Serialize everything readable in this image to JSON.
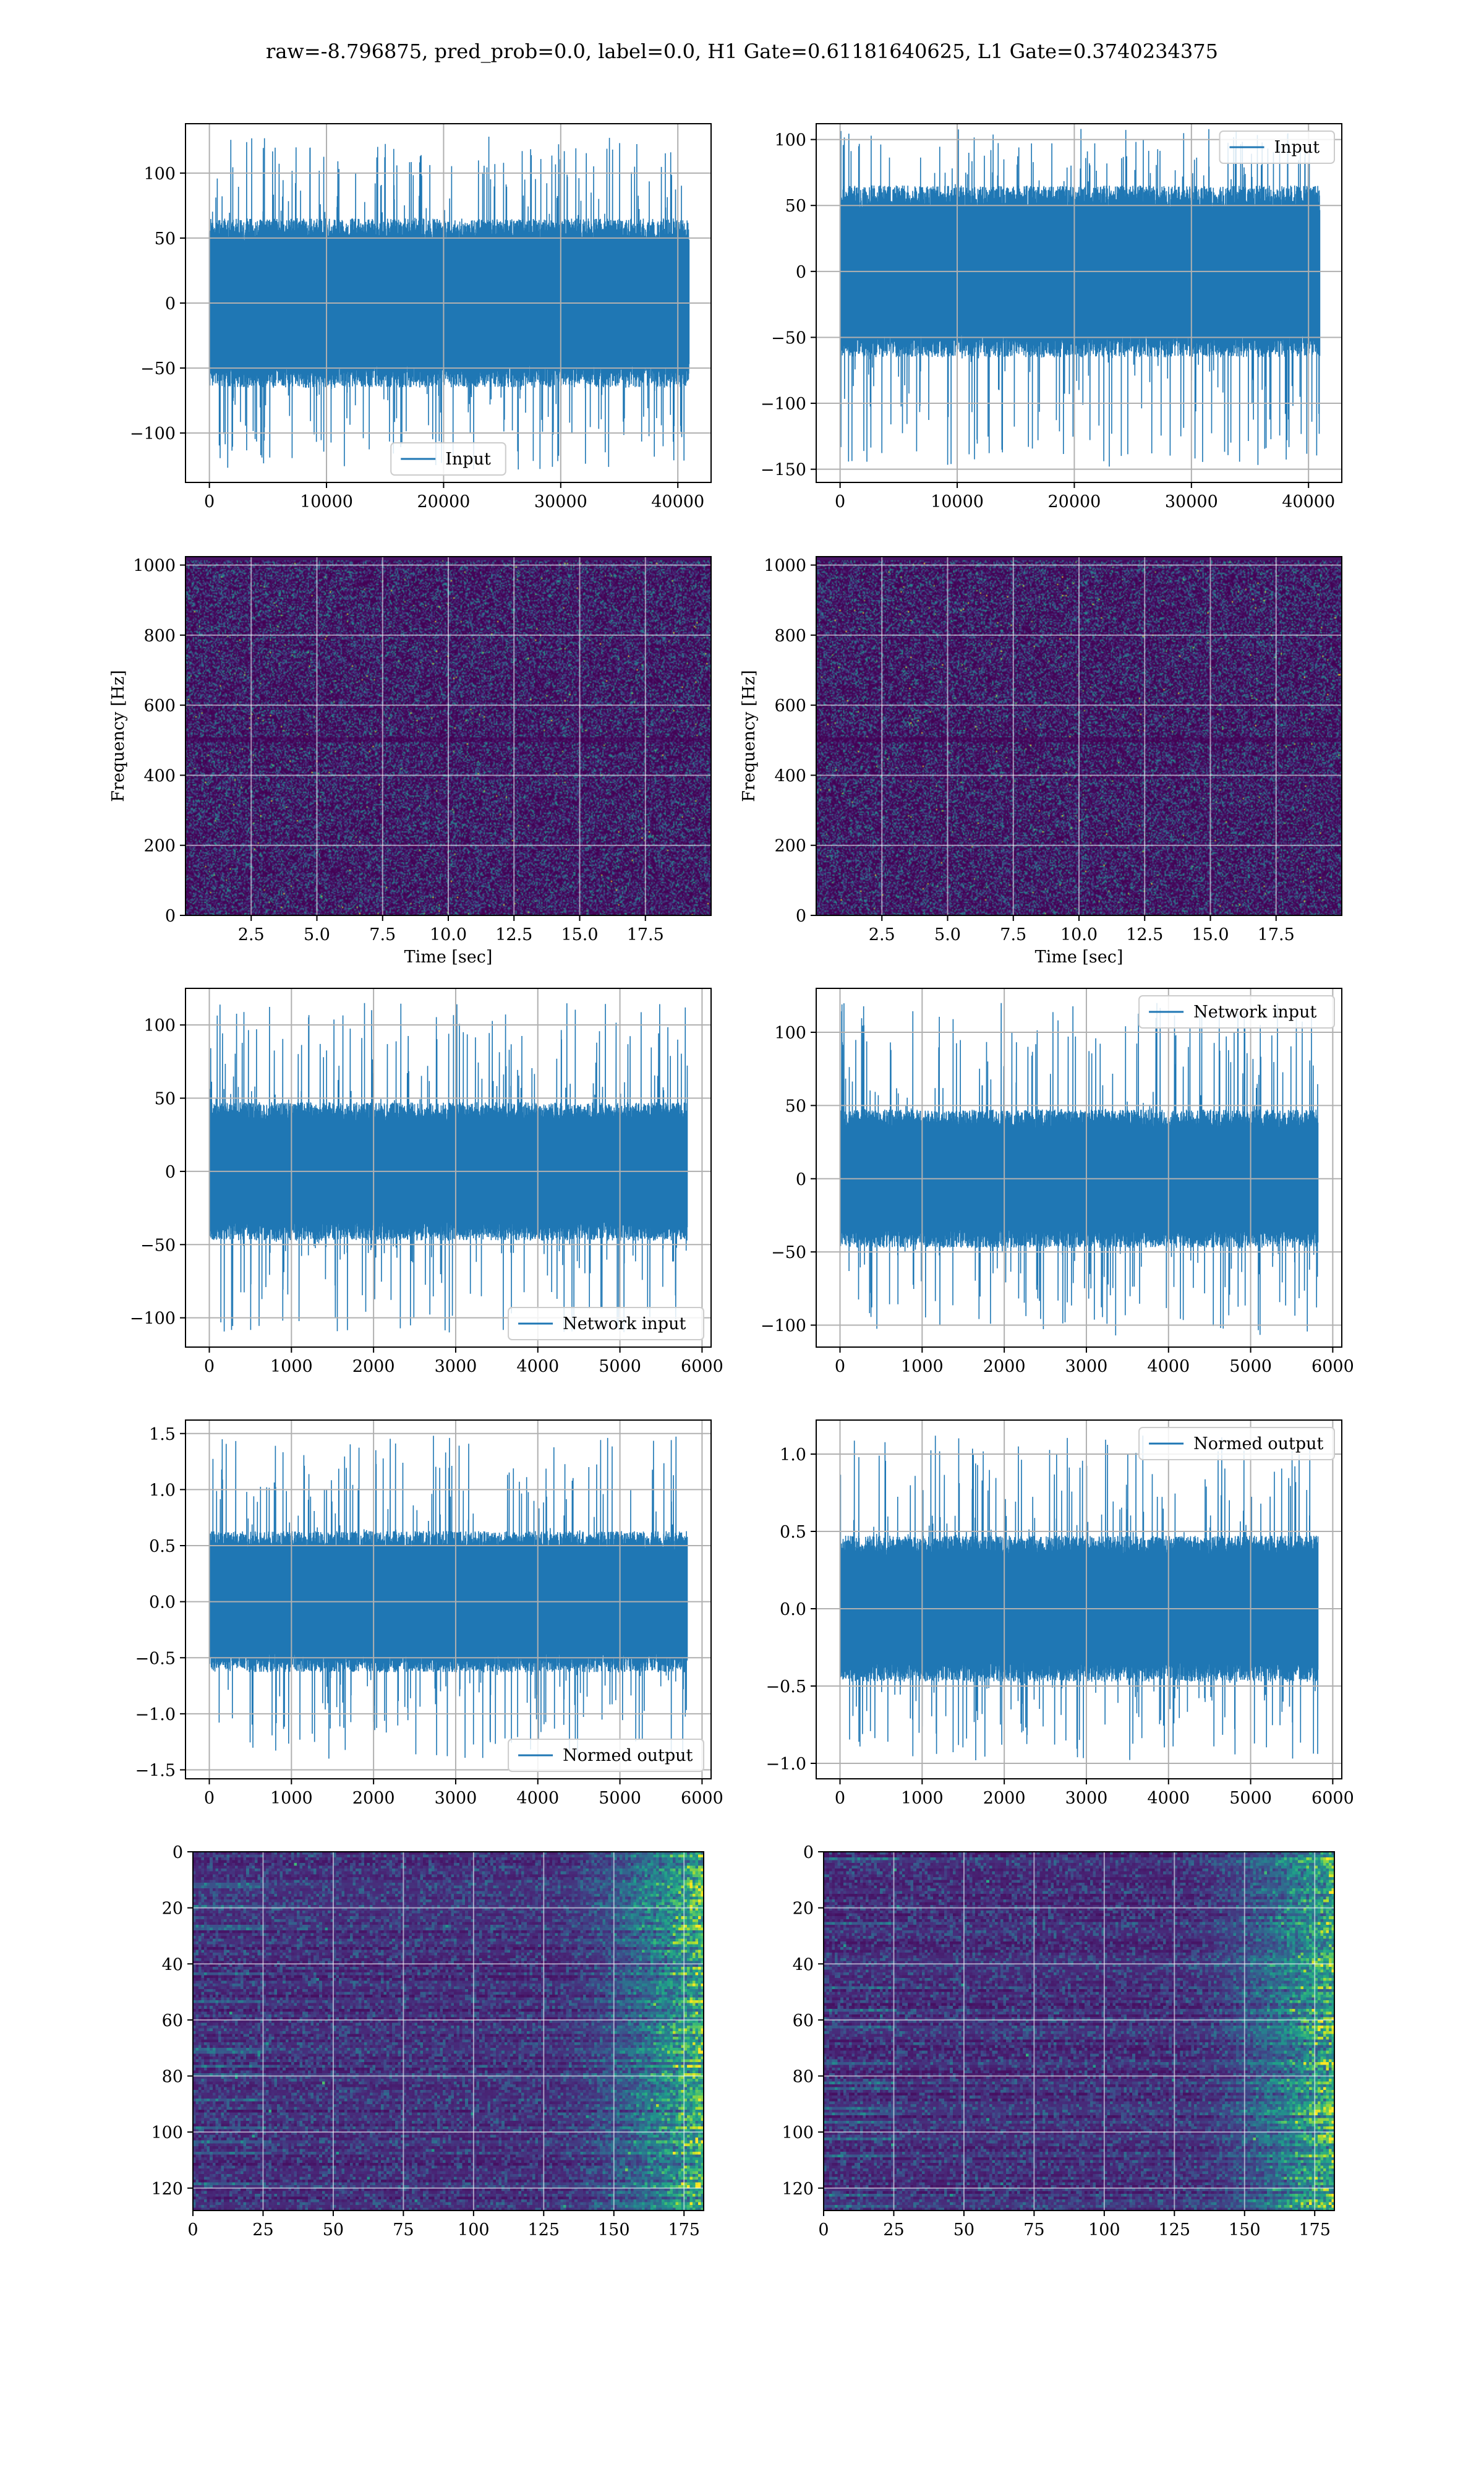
{
  "figure": {
    "title": "raw=-8.796875, pred_prob=0.0, label=0.0, H1 Gate=0.61181640625, L1 Gate=0.3740234375",
    "series_color": "#1f77b4"
  },
  "chart_data": [
    {
      "id": "h1-input",
      "type": "line",
      "title": "",
      "xlabel": "",
      "ylabel": "",
      "xlim": [
        -2040,
        42840
      ],
      "ylim": [
        -138,
        138
      ],
      "xticks": [
        0,
        10000,
        20000,
        30000,
        40000
      ],
      "yticks": [
        -100,
        -50,
        0,
        50,
        100
      ],
      "grid": true,
      "legend_position": "lower-center",
      "series": [
        {
          "name": "Input",
          "x_range": [
            0,
            40960
          ],
          "n_points": 40960,
          "core": 62,
          "peak": 128,
          "trough": -128
        }
      ]
    },
    {
      "id": "l1-input",
      "type": "line",
      "title": "",
      "xlabel": "",
      "ylabel": "",
      "xlim": [
        -2040,
        42840
      ],
      "ylim": [
        -160,
        112
      ],
      "xticks": [
        0,
        10000,
        20000,
        30000,
        40000
      ],
      "yticks": [
        -150,
        -100,
        -50,
        0,
        50,
        100
      ],
      "grid": true,
      "legend_position": "top-right",
      "series": [
        {
          "name": "Input",
          "x_range": [
            0,
            40960
          ],
          "n_points": 40960,
          "core": 62,
          "peak": 108,
          "trough": -148
        }
      ]
    },
    {
      "id": "h1-spectrogram",
      "type": "heatmap",
      "title": "",
      "xlabel": "Time [sec]",
      "ylabel": "Frequency [Hz]",
      "xlim": [
        0,
        20
      ],
      "ylim": [
        0,
        1024
      ],
      "xticks": [
        2.5,
        5.0,
        7.5,
        10.0,
        12.5,
        15.0,
        17.5
      ],
      "yticks": [
        0,
        200,
        400,
        600,
        800,
        1000
      ],
      "grid": true,
      "colormap": "viridis"
    },
    {
      "id": "l1-spectrogram",
      "type": "heatmap",
      "title": "",
      "xlabel": "Time [sec]",
      "ylabel": "Frequency [Hz]",
      "xlim": [
        0,
        20
      ],
      "ylim": [
        0,
        1024
      ],
      "xticks": [
        2.5,
        5.0,
        7.5,
        10.0,
        12.5,
        15.0,
        17.5
      ],
      "yticks": [
        0,
        200,
        400,
        600,
        800,
        1000
      ],
      "grid": true,
      "colormap": "viridis"
    },
    {
      "id": "h1-network-input",
      "type": "line",
      "title": "",
      "xlabel": "",
      "ylabel": "",
      "xlim": [
        -290,
        6110
      ],
      "ylim": [
        -120,
        125
      ],
      "xticks": [
        0,
        1000,
        2000,
        3000,
        4000,
        5000,
        6000
      ],
      "yticks": [
        -100,
        -50,
        0,
        50,
        100
      ],
      "grid": true,
      "legend_position": "lower-right",
      "series": [
        {
          "name": "Network input",
          "x_range": [
            0,
            5820
          ],
          "n_points": 5820,
          "core": 45,
          "peak": 115,
          "trough": -110
        }
      ]
    },
    {
      "id": "l1-network-input",
      "type": "line",
      "title": "",
      "xlabel": "",
      "ylabel": "",
      "xlim": [
        -290,
        6110
      ],
      "ylim": [
        -115,
        130
      ],
      "xticks": [
        0,
        1000,
        2000,
        3000,
        4000,
        5000,
        6000
      ],
      "yticks": [
        -100,
        -50,
        0,
        50,
        100
      ],
      "grid": true,
      "legend_position": "top-right",
      "series": [
        {
          "name": "Network input",
          "x_range": [
            0,
            5820
          ],
          "n_points": 5820,
          "core": 45,
          "peak": 120,
          "trough": -107
        }
      ]
    },
    {
      "id": "h1-normed-output",
      "type": "line",
      "title": "",
      "xlabel": "",
      "ylabel": "",
      "xlim": [
        -290,
        6110
      ],
      "ylim": [
        -1.58,
        1.62
      ],
      "xticks": [
        0,
        1000,
        2000,
        3000,
        4000,
        5000,
        6000
      ],
      "yticks": [
        -1.5,
        -1.0,
        -0.5,
        0.0,
        0.5,
        1.0,
        1.5
      ],
      "grid": true,
      "legend_position": "lower-right",
      "series": [
        {
          "name": "Normed output",
          "x_range": [
            0,
            5820
          ],
          "n_points": 5820,
          "core": 0.6,
          "peak": 1.48,
          "trough": -1.4
        }
      ]
    },
    {
      "id": "l1-normed-output",
      "type": "line",
      "title": "",
      "xlabel": "",
      "ylabel": "",
      "xlim": [
        -290,
        6110
      ],
      "ylim": [
        -1.1,
        1.22
      ],
      "xticks": [
        0,
        1000,
        2000,
        3000,
        4000,
        5000,
        6000
      ],
      "yticks": [
        -1.0,
        -0.5,
        0.0,
        0.5,
        1.0
      ],
      "grid": true,
      "legend_position": "top-right",
      "series": [
        {
          "name": "Normed output",
          "x_range": [
            0,
            5820
          ],
          "n_points": 5820,
          "core": 0.45,
          "peak": 1.12,
          "trough": -0.98
        }
      ]
    },
    {
      "id": "h1-feature-map",
      "type": "heatmap",
      "title": "",
      "xlabel": "",
      "ylabel": "",
      "xlim": [
        0,
        182
      ],
      "ylim": [
        128,
        0
      ],
      "xticks": [
        0,
        25,
        50,
        75,
        100,
        125,
        150,
        175
      ],
      "yticks": [
        0,
        20,
        40,
        60,
        80,
        100,
        120
      ],
      "grid": true,
      "colormap": "viridis"
    },
    {
      "id": "l1-feature-map",
      "type": "heatmap",
      "title": "",
      "xlabel": "",
      "ylabel": "",
      "xlim": [
        0,
        182
      ],
      "ylim": [
        128,
        0
      ],
      "xticks": [
        0,
        25,
        50,
        75,
        100,
        125,
        150,
        175
      ],
      "yticks": [
        0,
        20,
        40,
        60,
        80,
        100,
        120
      ],
      "grid": true,
      "colormap": "viridis"
    }
  ]
}
